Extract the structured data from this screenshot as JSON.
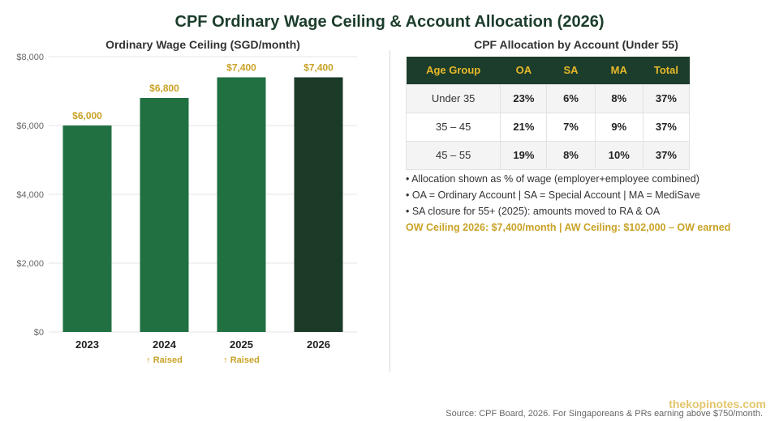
{
  "header": {
    "title": "CPF Ordinary Wage Ceiling & Account Allocation (2026)",
    "chart_title": "Ordinary Wage Ceiling (SGD/month)",
    "table_title": "CPF Allocation by Account (Under 55)"
  },
  "chart_data": {
    "type": "bar",
    "title": "Ordinary Wage Ceiling (SGD/month)",
    "categories": [
      "2023",
      "2024",
      "2025",
      "2026"
    ],
    "values": [
      6000,
      6800,
      7400,
      7400
    ],
    "value_labels": [
      "$6,000",
      "$6,800",
      "$7,400",
      "$7,400"
    ],
    "notes": [
      "",
      "↑ Raised",
      "↑ Raised",
      ""
    ],
    "colors": [
      "#207041",
      "#207041",
      "#207041",
      "#1b3a28"
    ],
    "yticks": [
      0,
      2000,
      4000,
      6000,
      8000
    ],
    "ytick_labels": [
      "$0",
      "$2,000",
      "$4,000",
      "$6,000",
      "$8,000"
    ],
    "ylim": [
      0,
      8000
    ],
    "grid": true
  },
  "allocation_table": {
    "headers": [
      "Age Group",
      "OA",
      "SA",
      "MA",
      "Total"
    ],
    "rows": [
      [
        "Under 35",
        "23%",
        "6%",
        "8%",
        "37%"
      ],
      [
        "35 – 45",
        "21%",
        "7%",
        "9%",
        "37%"
      ],
      [
        "45 – 55",
        "19%",
        "8%",
        "10%",
        "37%"
      ]
    ]
  },
  "notes": {
    "line1": "• Allocation shown as % of wage (employer+employee combined)",
    "line2": "• OA = Ordinary Account | SA = Special Account | MA = MediSave",
    "line3": "• SA closure for 55+ (2025): amounts moved to RA & OA",
    "highlight": "OW Ceiling 2026: $7,400/month | AW Ceiling: $102,000 – OW earned"
  },
  "footer": {
    "brand": "thekopinotes.com",
    "source": "Source: CPF Board, 2026. For Singaporeans & PRs earning above $750/month."
  }
}
